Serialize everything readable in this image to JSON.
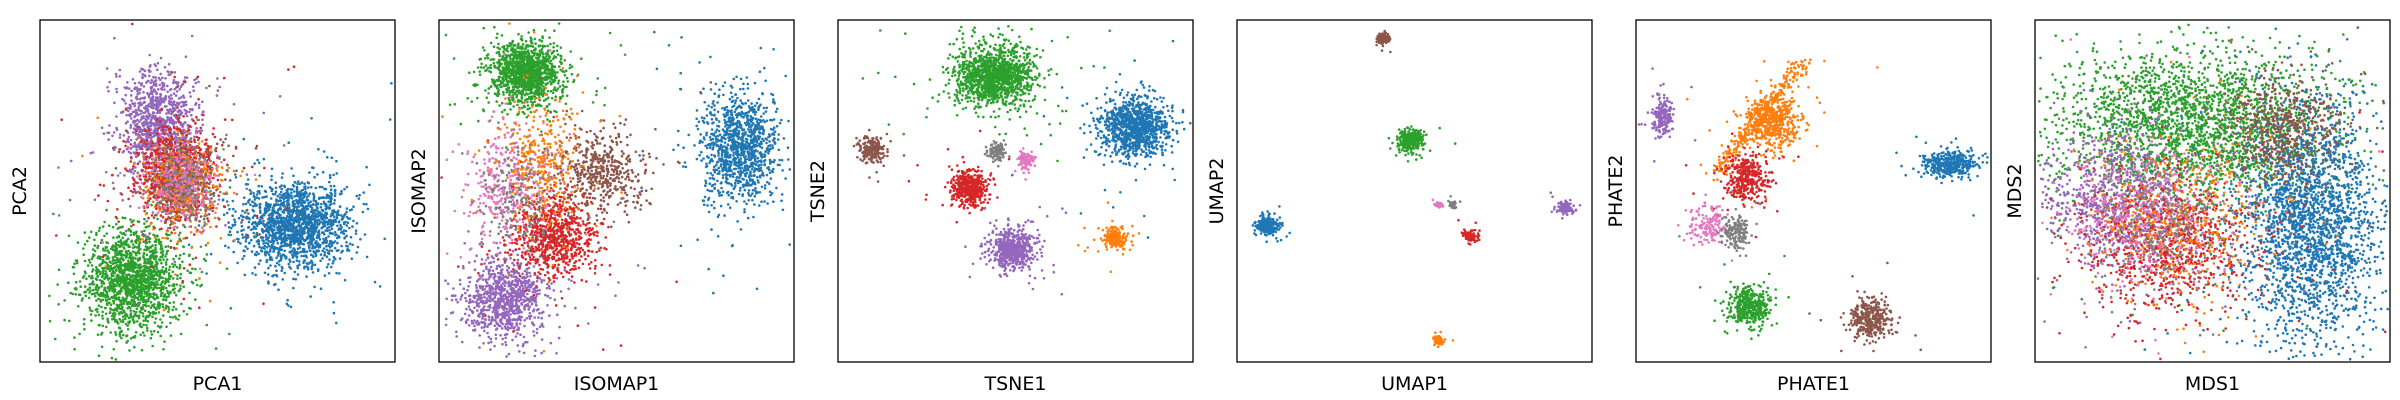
{
  "palette": {
    "blue": "#1f77b4",
    "orange": "#ff7f0e",
    "green": "#2ca02c",
    "red": "#d62728",
    "purple": "#9467bd",
    "brown": "#8c564b",
    "pink": "#e377c2",
    "gray": "#7f7f7f"
  },
  "chart_data": [
    {
      "type": "scatter",
      "xlabel": "PCA1",
      "ylabel": "PCA2",
      "xlim": [
        0,
        1
      ],
      "ylim": [
        0,
        1
      ],
      "grid": false,
      "ticks": false,
      "series": [
        {
          "color": "blue",
          "center": [
            0.72,
            0.4
          ],
          "spread": [
            0.075,
            0.062
          ],
          "count": 1600
        },
        {
          "color": "green",
          "center": [
            0.26,
            0.24
          ],
          "spread": [
            0.068,
            0.074
          ],
          "count": 1600
        },
        {
          "color": "purple",
          "center": [
            0.33,
            0.7
          ],
          "spread": [
            0.055,
            0.08
          ],
          "count": 1000
        },
        {
          "color": "red",
          "center": [
            0.38,
            0.55
          ],
          "spread": [
            0.057,
            0.07
          ],
          "count": 900
        },
        {
          "color": "orange",
          "center": [
            0.4,
            0.52
          ],
          "spread": [
            0.05,
            0.06
          ],
          "count": 500
        },
        {
          "color": "brown",
          "center": [
            0.4,
            0.53
          ],
          "spread": [
            0.05,
            0.06
          ],
          "count": 300
        },
        {
          "color": "gray",
          "center": [
            0.41,
            0.52
          ],
          "spread": [
            0.05,
            0.06
          ],
          "count": 250
        },
        {
          "color": "pink",
          "center": [
            0.39,
            0.53
          ],
          "spread": [
            0.05,
            0.06
          ],
          "count": 200
        }
      ]
    },
    {
      "type": "scatter",
      "xlabel": "ISOMAP1",
      "ylabel": "ISOMAP2",
      "xlim": [
        0,
        1
      ],
      "ylim": [
        0,
        1
      ],
      "grid": false,
      "ticks": false,
      "series": [
        {
          "color": "green",
          "center": [
            0.24,
            0.85
          ],
          "spread": [
            0.05,
            0.045
          ],
          "count": 1300
        },
        {
          "color": "blue",
          "center": [
            0.85,
            0.63
          ],
          "spread": [
            0.055,
            0.08
          ],
          "count": 1100
        },
        {
          "color": "purple",
          "center": [
            0.18,
            0.18
          ],
          "spread": [
            0.06,
            0.06
          ],
          "count": 900
        },
        {
          "color": "red",
          "center": [
            0.32,
            0.37
          ],
          "spread": [
            0.06,
            0.06
          ],
          "count": 800
        },
        {
          "color": "brown",
          "center": [
            0.45,
            0.56
          ],
          "spread": [
            0.06,
            0.06
          ],
          "count": 500
        },
        {
          "color": "orange",
          "center": [
            0.28,
            0.58
          ],
          "spread": [
            0.06,
            0.09
          ],
          "count": 400
        },
        {
          "color": "pink",
          "center": [
            0.18,
            0.52
          ],
          "spread": [
            0.06,
            0.09
          ],
          "count": 300
        },
        {
          "color": "gray",
          "center": [
            0.22,
            0.48
          ],
          "spread": [
            0.05,
            0.09
          ],
          "count": 200
        }
      ]
    },
    {
      "type": "scatter",
      "xlabel": "TSNE1",
      "ylabel": "TSNE2",
      "xlim": [
        0,
        1
      ],
      "ylim": [
        0,
        1
      ],
      "grid": false,
      "ticks": false,
      "series": [
        {
          "color": "green",
          "center": [
            0.44,
            0.84
          ],
          "spread": [
            0.055,
            0.045
          ],
          "count": 1300
        },
        {
          "color": "blue",
          "center": [
            0.84,
            0.69
          ],
          "spread": [
            0.048,
            0.042
          ],
          "count": 1100
        },
        {
          "color": "brown",
          "center": [
            0.09,
            0.62
          ],
          "spread": [
            0.018,
            0.02
          ],
          "count": 200
        },
        {
          "color": "gray",
          "center": [
            0.45,
            0.62
          ],
          "spread": [
            0.012,
            0.014
          ],
          "count": 100
        },
        {
          "color": "pink",
          "center": [
            0.53,
            0.59
          ],
          "spread": [
            0.012,
            0.012
          ],
          "count": 100
        },
        {
          "color": "red",
          "center": [
            0.37,
            0.51
          ],
          "spread": [
            0.024,
            0.025
          ],
          "count": 500
        },
        {
          "color": "orange",
          "center": [
            0.78,
            0.36
          ],
          "spread": [
            0.016,
            0.015
          ],
          "count": 200
        },
        {
          "color": "purple",
          "center": [
            0.49,
            0.33
          ],
          "spread": [
            0.03,
            0.028
          ],
          "count": 600
        }
      ]
    },
    {
      "type": "scatter",
      "xlabel": "UMAP1",
      "ylabel": "UMAP2",
      "xlim": [
        0,
        1
      ],
      "ylim": [
        0,
        1
      ],
      "grid": false,
      "ticks": false,
      "series": [
        {
          "color": "brown",
          "center": [
            0.41,
            0.95
          ],
          "spread": [
            0.008,
            0.008
          ],
          "count": 100
        },
        {
          "color": "green",
          "center": [
            0.49,
            0.65
          ],
          "spread": [
            0.018,
            0.016
          ],
          "count": 300
        },
        {
          "color": "blue",
          "center": [
            0.08,
            0.4
          ],
          "spread": [
            0.016,
            0.014
          ],
          "count": 250
        },
        {
          "color": "pink",
          "center": [
            0.57,
            0.46
          ],
          "spread": [
            0.006,
            0.004
          ],
          "count": 40
        },
        {
          "color": "gray",
          "center": [
            0.61,
            0.46
          ],
          "spread": [
            0.005,
            0.006
          ],
          "count": 40
        },
        {
          "color": "red",
          "center": [
            0.66,
            0.37
          ],
          "spread": [
            0.01,
            0.01
          ],
          "count": 90
        },
        {
          "color": "purple",
          "center": [
            0.93,
            0.45
          ],
          "spread": [
            0.012,
            0.01
          ],
          "count": 100
        },
        {
          "color": "orange",
          "center": [
            0.57,
            0.06
          ],
          "spread": [
            0.007,
            0.007
          ],
          "count": 60
        }
      ]
    },
    {
      "type": "scatter",
      "xlabel": "PHATE1",
      "ylabel": "PHATE2",
      "xlim": [
        0,
        1
      ],
      "ylim": [
        0,
        1
      ],
      "grid": false,
      "ticks": false,
      "series": [
        {
          "color": "orange",
          "center": [
            0.38,
            0.7
          ],
          "spread": [
            0.04,
            0.04
          ],
          "count": 800,
          "trail": [
            0.47,
            0.88,
            0.22,
            0.55
          ]
        },
        {
          "color": "purple",
          "center": [
            0.07,
            0.72
          ],
          "spread": [
            0.015,
            0.03
          ],
          "count": 200
        },
        {
          "color": "red",
          "center": [
            0.31,
            0.54
          ],
          "spread": [
            0.03,
            0.035
          ],
          "count": 350
        },
        {
          "color": "pink",
          "center": [
            0.2,
            0.4
          ],
          "spread": [
            0.025,
            0.03
          ],
          "count": 150
        },
        {
          "color": "gray",
          "center": [
            0.28,
            0.38
          ],
          "spread": [
            0.02,
            0.025
          ],
          "count": 150
        },
        {
          "color": "blue",
          "center": [
            0.89,
            0.58
          ],
          "spread": [
            0.04,
            0.02
          ],
          "count": 400
        },
        {
          "color": "green",
          "center": [
            0.32,
            0.16
          ],
          "spread": [
            0.03,
            0.03
          ],
          "count": 400
        },
        {
          "color": "brown",
          "center": [
            0.66,
            0.12
          ],
          "spread": [
            0.03,
            0.03
          ],
          "count": 350
        }
      ]
    },
    {
      "type": "scatter",
      "xlabel": "MDS1",
      "ylabel": "MDS2",
      "xlim": [
        0,
        1
      ],
      "ylim": [
        0,
        1
      ],
      "grid": false,
      "ticks": false,
      "series": [
        {
          "color": "green",
          "center": [
            0.44,
            0.7
          ],
          "spread": [
            0.2,
            0.11
          ],
          "count": 2500
        },
        {
          "color": "blue",
          "center": [
            0.78,
            0.4
          ],
          "spread": [
            0.1,
            0.18
          ],
          "count": 2400
        },
        {
          "color": "purple",
          "center": [
            0.23,
            0.47
          ],
          "spread": [
            0.1,
            0.1
          ],
          "count": 900
        },
        {
          "color": "red",
          "center": [
            0.38,
            0.35
          ],
          "spread": [
            0.12,
            0.1
          ],
          "count": 900
        },
        {
          "color": "brown",
          "center": [
            0.7,
            0.68
          ],
          "spread": [
            0.08,
            0.08
          ],
          "count": 600
        },
        {
          "color": "orange",
          "center": [
            0.4,
            0.42
          ],
          "spread": [
            0.12,
            0.12
          ],
          "count": 500
        },
        {
          "color": "pink",
          "center": [
            0.3,
            0.42
          ],
          "spread": [
            0.11,
            0.11
          ],
          "count": 400
        },
        {
          "color": "gray",
          "center": [
            0.35,
            0.4
          ],
          "spread": [
            0.11,
            0.11
          ],
          "count": 300
        }
      ]
    }
  ]
}
